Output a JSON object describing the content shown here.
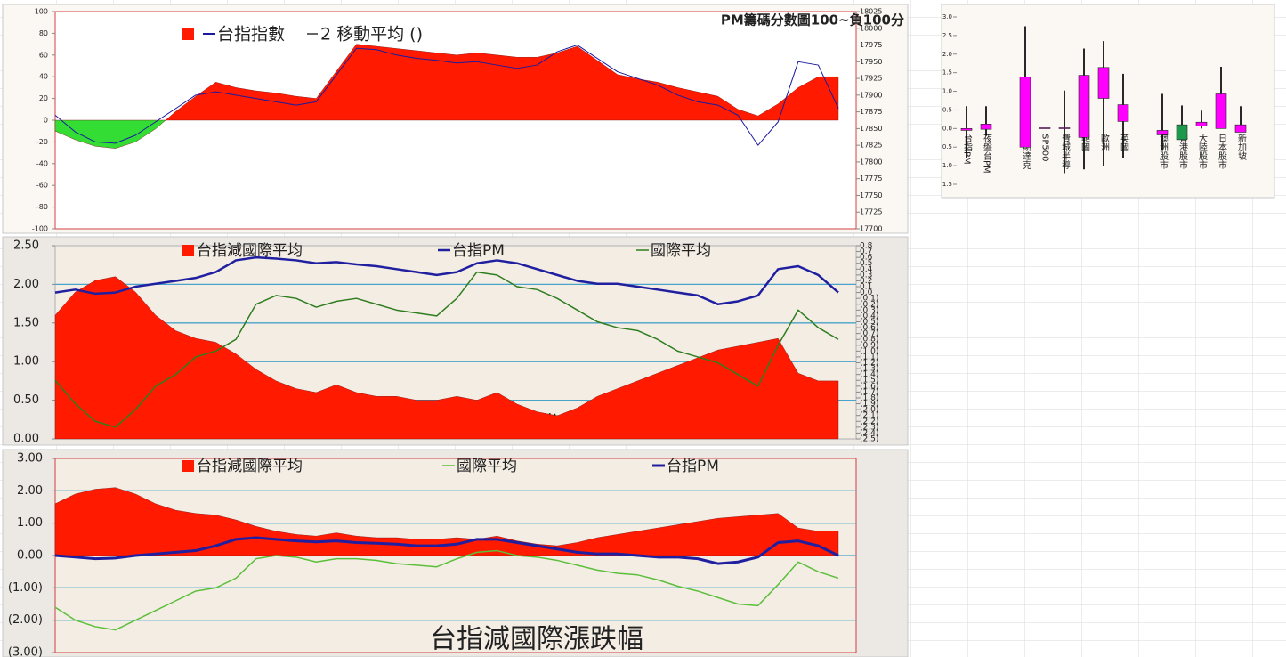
{
  "chart_data": [
    {
      "type": "combo",
      "annotation": "PM籌碼分數圖100~負100分",
      "legend_text": "2 移動平均 ()",
      "ylim": [
        -100,
        100
      ],
      "yticks": [
        -100,
        -80,
        -60,
        -40,
        -20,
        0,
        20,
        40,
        60,
        80,
        100
      ],
      "y2lim": [
        17700,
        18025
      ],
      "y2ticks": [
        17700,
        17725,
        17750,
        17775,
        17800,
        17825,
        17850,
        17875,
        17900,
        17925,
        17950,
        17975,
        18000,
        18025
      ],
      "grid": false,
      "series": [
        {
          "type": "area",
          "color": "#ff1a00",
          "negative_color": "#33dd33",
          "values": [
            -10,
            -18,
            -24,
            -26,
            -20,
            -8,
            8,
            22,
            35,
            30,
            27,
            25,
            22,
            20,
            45,
            70,
            68,
            66,
            64,
            62,
            60,
            62,
            60,
            58,
            58,
            62,
            68,
            55,
            42,
            38,
            35,
            30,
            26,
            22,
            10,
            4,
            15,
            30,
            40,
            40
          ]
        },
        {
          "name": "台指指數",
          "type": "line",
          "axis": "y2",
          "color": "#1a1aa0",
          "values": [
            17870,
            17845,
            17830,
            17828,
            17840,
            17860,
            17880,
            17900,
            17905,
            17900,
            17895,
            17890,
            17885,
            17890,
            17930,
            17970,
            17968,
            17960,
            17955,
            17952,
            17948,
            17950,
            17945,
            17940,
            17945,
            17965,
            17975,
            17955,
            17935,
            17925,
            17915,
            17900,
            17890,
            17885,
            17870,
            17825,
            17860,
            17950,
            17945,
            17880
          ]
        }
      ]
    },
    {
      "type": "candlestick",
      "categories": [
        "台指PM",
        "夜盤台PM",
        null,
        "那斯達克",
        "SP500",
        "費城半導",
        "韓國",
        "歐洲",
        "英國",
        null,
        "澳洲股市",
        "香港股市",
        "大陸股市",
        "日本股市",
        "新加坡"
      ],
      "open": [
        -0.05,
        -0.02,
        null,
        -0.5,
        0,
        0,
        -0.24,
        0.81,
        0.19,
        null,
        -0.17,
        0.1,
        0.07,
        0,
        -0.1
      ],
      "close": [
        0,
        0.12,
        null,
        1.38,
        0.02,
        0.02,
        1.43,
        1.64,
        0.64,
        null,
        -0.05,
        -0.3,
        0.17,
        0.93,
        0.1
      ],
      "high": [
        0.6,
        0.6,
        null,
        2.75,
        0.02,
        1.02,
        2.15,
        2.35,
        1.47,
        null,
        0.93,
        0.62,
        0.48,
        1.66,
        0.6
      ],
      "low": [
        -0.8,
        -0.2,
        null,
        -0.5,
        0,
        -1.2,
        -1.1,
        -1.0,
        -0.8,
        null,
        -0.6,
        -0.3,
        0,
        0,
        -0.1
      ],
      "up_color": "#ff00ff",
      "down_color": "#1a9a4a",
      "negative_tick_color": "#c00000",
      "ylim": [
        -1.5,
        3
      ],
      "yticks": [
        {
          "value": 3,
          "label": "3.0"
        },
        2.5,
        {
          "value": 2,
          "label": "2.0"
        },
        1.5,
        {
          "value": 1,
          "label": "1.0"
        },
        0.5,
        {
          "value": 0,
          "label": "0.0"
        },
        {
          "value": -0.5,
          "label": "0.5"
        },
        {
          "value": -1,
          "label": "1.0"
        },
        {
          "value": -1.5,
          "label": "1.5"
        }
      ]
    },
    {
      "type": "combo",
      "watermark": "台指減國際漲跌幅",
      "grid": true,
      "grid_color": "#4aa3c8",
      "negative_tick_color": "#c00000",
      "ylim": [
        0,
        2.5
      ],
      "yticks": [
        {
          "value": 0,
          "label": "0.00"
        },
        {
          "value": 0.5,
          "label": "0.50"
        },
        {
          "value": 1,
          "label": "1.00"
        },
        {
          "value": 1.5,
          "label": "1.50"
        },
        {
          "value": 2,
          "label": "2.00"
        },
        {
          "value": 2.5,
          "label": "2.50"
        }
      ],
      "y2lim": [
        -2.5,
        0.8
      ],
      "y2ticks": [
        0.8,
        0.7,
        0.6,
        0.5,
        0.4,
        0.3,
        0.2,
        0.1,
        {
          "value": 0,
          "label": "0.0"
        },
        {
          "value": -0.1,
          "label": "(0.1)"
        },
        {
          "value": -0.2,
          "label": "(0.2)"
        },
        {
          "value": -0.3,
          "label": "(0.3)"
        },
        {
          "value": -0.4,
          "label": "(0.4)"
        },
        {
          "value": -0.5,
          "label": "(0.5)"
        },
        {
          "value": -0.6,
          "label": "(0.6)"
        },
        {
          "value": -0.7,
          "label": "(0.7)"
        },
        {
          "value": -0.8,
          "label": "(0.8)"
        },
        {
          "value": -0.9,
          "label": "(0.9)"
        },
        {
          "value": -1,
          "label": "(1.0)"
        },
        {
          "value": -1.1,
          "label": "(1.1)"
        },
        {
          "value": -1.2,
          "label": "(1.2)"
        },
        {
          "value": -1.3,
          "label": "(1.3)"
        },
        {
          "value": -1.4,
          "label": "(1.4)"
        },
        {
          "value": -1.5,
          "label": "(1.5)"
        },
        {
          "value": -1.6,
          "label": "(1.6)"
        },
        {
          "value": -1.7,
          "label": "(1.7)"
        },
        {
          "value": -1.8,
          "label": "(1.8)"
        },
        {
          "value": -1.9,
          "label": "(1.9)"
        },
        {
          "value": -2,
          "label": "(2.0)"
        },
        {
          "value": -2.1,
          "label": "(2.1)"
        },
        {
          "value": -2.2,
          "label": "(2.2)"
        },
        {
          "value": -2.3,
          "label": "(2.3)"
        },
        {
          "value": -2.4,
          "label": "(2.4)"
        },
        {
          "value": -2.5,
          "label": "(2.5)"
        }
      ],
      "series": [
        {
          "name": "台指減國際平均",
          "type": "area",
          "color": "#ff1a00",
          "values": [
            1.6,
            1.9,
            2.05,
            2.1,
            1.9,
            1.6,
            1.4,
            1.3,
            1.25,
            1.1,
            0.9,
            0.75,
            0.65,
            0.6,
            0.7,
            0.6,
            0.55,
            0.55,
            0.5,
            0.5,
            0.55,
            0.5,
            0.6,
            0.45,
            0.35,
            0.3,
            0.4,
            0.55,
            0.65,
            0.75,
            0.85,
            0.95,
            1.05,
            1.15,
            1.2,
            1.25,
            1.3,
            0.85,
            0.75,
            0.75
          ]
        },
        {
          "name": "台指PM",
          "type": "line",
          "axis": "y2",
          "color": "#1f1fa0",
          "width": 2.5,
          "values": [
            0,
            0.05,
            -0.02,
            0,
            0.1,
            0.15,
            0.2,
            0.25,
            0.35,
            0.55,
            0.6,
            0.58,
            0.55,
            0.5,
            0.52,
            0.48,
            0.45,
            0.4,
            0.35,
            0.3,
            0.35,
            0.5,
            0.55,
            0.5,
            0.4,
            0.3,
            0.2,
            0.15,
            0.15,
            0.1,
            0.05,
            0,
            -0.05,
            -0.2,
            -0.15,
            -0.05,
            0.4,
            0.45,
            0.3,
            0
          ]
        },
        {
          "name": "國際平均",
          "type": "line",
          "axis": "y2",
          "color": "#2e7d1e",
          "width": 1.5,
          "values": [
            -1.5,
            -1.9,
            -2.2,
            -2.3,
            -2,
            -1.6,
            -1.4,
            -1.1,
            -1,
            -0.8,
            -0.2,
            -0.05,
            -0.1,
            -0.25,
            -0.15,
            -0.1,
            -0.2,
            -0.3,
            -0.35,
            -0.4,
            -0.1,
            0.35,
            0.3,
            0.1,
            0.05,
            -0.1,
            -0.3,
            -0.5,
            -0.6,
            -0.65,
            -0.8,
            -1,
            -1.1,
            -1.2,
            -1.4,
            -1.6,
            -0.9,
            -0.3,
            -0.6,
            -0.8
          ]
        }
      ]
    },
    {
      "type": "combo",
      "watermark": "台指減國際漲跌幅",
      "grid": true,
      "grid_color": "#4aa3c8",
      "negative_tick_color": "#c00000",
      "ylim": [
        -3,
        3
      ],
      "yticks": [
        {
          "value": -3,
          "label": "(3.00)"
        },
        {
          "value": -2,
          "label": "(2.00)"
        },
        {
          "value": -1,
          "label": "(1.00)"
        },
        {
          "value": 0,
          "label": "0.00"
        },
        {
          "value": 1,
          "label": "1.00"
        },
        {
          "value": 2,
          "label": "2.00"
        },
        {
          "value": 3,
          "label": "3.00"
        }
      ],
      "series": [
        {
          "name": "台指減國際平均",
          "type": "area",
          "color": "#ff1a00",
          "values": [
            1.6,
            1.9,
            2.05,
            2.1,
            1.9,
            1.6,
            1.4,
            1.3,
            1.25,
            1.1,
            0.9,
            0.75,
            0.65,
            0.6,
            0.7,
            0.6,
            0.55,
            0.55,
            0.5,
            0.5,
            0.55,
            0.5,
            0.6,
            0.45,
            0.35,
            0.3,
            0.4,
            0.55,
            0.65,
            0.75,
            0.85,
            0.95,
            1.05,
            1.15,
            1.2,
            1.25,
            1.3,
            0.85,
            0.75,
            0.75
          ]
        },
        {
          "name": "國際平均",
          "type": "line",
          "color": "#5cbf3a",
          "width": 1.5,
          "values": [
            -1.6,
            -2,
            -2.2,
            -2.3,
            -2,
            -1.7,
            -1.4,
            -1.1,
            -1,
            -0.7,
            -0.1,
            0,
            -0.05,
            -0.2,
            -0.1,
            -0.1,
            -0.15,
            -0.25,
            -0.3,
            -0.35,
            -0.1,
            0.1,
            0.15,
            0,
            -0.05,
            -0.15,
            -0.3,
            -0.45,
            -0.55,
            -0.6,
            -0.75,
            -0.95,
            -1.1,
            -1.3,
            -1.5,
            -1.55,
            -0.9,
            -0.2,
            -0.5,
            -0.7
          ]
        },
        {
          "name": "台指PM",
          "type": "line",
          "color": "#1f1fa0",
          "width": 3,
          "values": [
            0,
            -0.05,
            -0.1,
            -0.08,
            0,
            0.05,
            0.1,
            0.15,
            0.3,
            0.5,
            0.55,
            0.5,
            0.45,
            0.42,
            0.45,
            0.4,
            0.38,
            0.35,
            0.3,
            0.3,
            0.35,
            0.5,
            0.5,
            0.4,
            0.3,
            0.2,
            0.1,
            0.05,
            0.05,
            0,
            -0.05,
            -0.05,
            -0.1,
            -0.25,
            -0.2,
            -0.05,
            0.4,
            0.45,
            0.3,
            0
          ]
        }
      ]
    }
  ]
}
